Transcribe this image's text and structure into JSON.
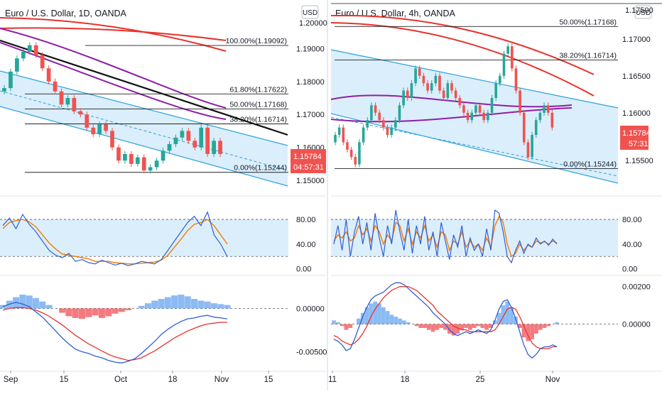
{
  "colors": {
    "channel_fill": "#dbeefb",
    "channel_line": "#2aa2dc",
    "ma_red": "#e8322b",
    "ma_purple": "#8e1fa5",
    "trend_black": "#111111",
    "candle_up": "#26a69a",
    "candle_down": "#ef5350",
    "price_tag": "#ef5350",
    "stoch_k": "#2f5fd6",
    "stoch_d": "#f57c00",
    "macd_line": "#2f5fd6",
    "signal_line": "#e8322b",
    "hist_pos": "#5b9ef0",
    "hist_neg": "#f0424a",
    "grid": "#555555"
  },
  "chart_data": [
    {
      "type": "line",
      "title": "Euro / U.S. Dollar, 1D, OANDA",
      "currency_button": "USD",
      "ylim": [
        1.147,
        1.203
      ],
      "y_ticks": [
        "1.19000",
        "1.18000",
        "1.17000",
        "1.16000",
        "1.15000"
      ],
      "y_tick_values": [
        1.19,
        1.18,
        1.17,
        1.16,
        1.15
      ],
      "top_clipped_label": "1.20000",
      "x_ticks": [
        "Sep",
        "15",
        "Oct",
        "18",
        "Nov",
        "15"
      ],
      "fib_levels": [
        {
          "label": "100.00%(1.19092)",
          "value": 1.19092
        },
        {
          "label": "61.80%(1.17622)",
          "value": 1.17622
        },
        {
          "label": "50.00%(1.17168)",
          "value": 1.17168
        },
        {
          "label": "38.20%(1.16714)",
          "value": 1.16714
        },
        {
          "label": "0.00%(1.15244)",
          "value": 1.15244
        }
      ],
      "last_price": "1.15784",
      "countdown": "04:57:31",
      "series": [
        {
          "values": [
            1.178,
            1.183,
            1.187,
            1.189,
            1.191,
            1.188,
            1.184,
            1.18,
            1.177,
            1.173,
            1.175,
            1.171,
            1.17,
            1.166,
            1.164,
            1.167,
            1.165,
            1.16,
            1.156,
            1.158,
            1.155,
            1.157,
            1.153,
            1.154,
            1.156,
            1.159,
            1.161,
            1.163,
            1.165,
            1.162,
            1.16,
            1.166,
            1.158,
            1.162,
            1.158
          ]
        }
      ],
      "stochastic": {
        "ylim": [
          -5,
          110
        ],
        "ticks": [
          "80.00",
          "40.00",
          "0.00"
        ],
        "tick_values": [
          80,
          40,
          0
        ],
        "band": [
          20,
          80
        ],
        "k": [
          70,
          82,
          65,
          88,
          72,
          60,
          45,
          30,
          22,
          18,
          25,
          12,
          15,
          10,
          8,
          14,
          10,
          6,
          9,
          5,
          8,
          12,
          10,
          8,
          15,
          30,
          45,
          60,
          75,
          85,
          70,
          92,
          55,
          40,
          20
        ],
        "d": [
          65,
          75,
          78,
          80,
          76,
          68,
          55,
          42,
          32,
          24,
          22,
          20,
          18,
          16,
          12,
          12,
          12,
          10,
          9,
          8,
          8,
          9,
          10,
          11,
          14,
          22,
          35,
          48,
          62,
          72,
          75,
          80,
          70,
          55,
          40
        ]
      },
      "macd": {
        "ylim": [
          -0.0066,
          0.0034
        ],
        "ticks": [
          "0.00000",
          "-0.00500"
        ],
        "tick_values": [
          0.0,
          -0.005
        ],
        "hist": [
          0.0004,
          0.0009,
          0.0013,
          0.0016,
          0.0015,
          0.0012,
          0.0008,
          0.0004,
          0.0,
          -0.0005,
          -0.0009,
          -0.0011,
          -0.0012,
          -0.001,
          -0.0008,
          -0.0011,
          -0.0009,
          -0.0006,
          -0.0004,
          -0.0002,
          0.0,
          0.0003,
          0.0006,
          0.0009,
          0.0011,
          0.0013,
          0.0015,
          0.0016,
          0.0014,
          0.0011,
          0.0009,
          0.0008,
          0.0006,
          0.0005,
          0.0004
        ],
        "macd": [
          0.0002,
          0.0005,
          0.0007,
          0.0005,
          0.0002,
          -0.0004,
          -0.001,
          -0.0018,
          -0.0026,
          -0.0034,
          -0.0041,
          -0.0047,
          -0.005,
          -0.0052,
          -0.0055,
          -0.0057,
          -0.006,
          -0.0062,
          -0.0063,
          -0.0061,
          -0.0058,
          -0.0052,
          -0.0045,
          -0.0038,
          -0.003,
          -0.0024,
          -0.0019,
          -0.0015,
          -0.0012,
          -0.0011,
          -0.0009,
          -0.0008,
          -0.001,
          -0.0011,
          -0.0012
        ],
        "signal": [
          -0.0002,
          0.0,
          0.0001,
          0.0001,
          0.0,
          -0.0002,
          -0.0005,
          -0.0009,
          -0.0014,
          -0.0019,
          -0.0025,
          -0.0031,
          -0.0036,
          -0.0041,
          -0.0045,
          -0.0049,
          -0.0053,
          -0.0056,
          -0.0058,
          -0.006,
          -0.0059,
          -0.0057,
          -0.0053,
          -0.0049,
          -0.0044,
          -0.0039,
          -0.0034,
          -0.003,
          -0.0026,
          -0.0023,
          -0.002,
          -0.0018,
          -0.0017,
          -0.0016,
          -0.0016
        ]
      }
    },
    {
      "type": "line",
      "title": "Euro / U.S. Dollar, 4h, OANDA",
      "currency_button": "USD",
      "ylim": [
        1.1495,
        1.1745
      ],
      "y_ticks": [
        "1.17000",
        "1.16500",
        "1.16000"
      ],
      "y_tick_values": [
        1.17,
        1.165,
        1.16
      ],
      "top_clipped_label": "1.17500",
      "bottom_clipped_label": "1.15500",
      "x_ticks": [
        "11",
        "18",
        "25",
        "Nov"
      ],
      "fib_levels": [
        {
          "label": "50.00%(1.17168)",
          "value": 1.17168
        },
        {
          "label": "38.20%(1.16714)",
          "value": 1.16714
        },
        {
          "label": "0.00%(1.15244)",
          "value": 1.15244
        }
      ],
      "last_price": "1.15784",
      "countdown": "57:31",
      "series": [
        {
          "values": [
            1.157,
            1.158,
            1.156,
            1.155,
            1.154,
            1.153,
            1.156,
            1.158,
            1.159,
            1.161,
            1.16,
            1.159,
            1.158,
            1.157,
            1.158,
            1.159,
            1.161,
            1.163,
            1.162,
            1.164,
            1.166,
            1.165,
            1.164,
            1.163,
            1.164,
            1.165,
            1.163,
            1.162,
            1.164,
            1.163,
            1.162,
            1.161,
            1.16,
            1.159,
            1.16,
            1.161,
            1.16,
            1.159,
            1.16,
            1.162,
            1.164,
            1.165,
            1.168,
            1.169,
            1.166,
            1.163,
            1.16,
            1.156,
            1.154,
            1.157,
            1.159,
            1.16,
            1.161,
            1.16,
            1.158
          ]
        }
      ],
      "stochastic": {
        "ylim": [
          -5,
          110
        ],
        "ticks": [
          "80.00",
          "40.00",
          "0.00"
        ],
        "tick_values": [
          80,
          40,
          0
        ],
        "band": [
          20,
          80
        ],
        "k": [
          40,
          70,
          30,
          80,
          20,
          60,
          85,
          40,
          75,
          30,
          90,
          50,
          20,
          70,
          40,
          95,
          60,
          30,
          80,
          25,
          70,
          40,
          85,
          30,
          60,
          20,
          75,
          45,
          15,
          55,
          35,
          70,
          20,
          50,
          30,
          40,
          20,
          65,
          30,
          95,
          90,
          60,
          20,
          10,
          30,
          45,
          25,
          40,
          35,
          50,
          40,
          45,
          38,
          48,
          40
        ],
        "d": [
          45,
          55,
          50,
          60,
          45,
          50,
          70,
          55,
          65,
          45,
          70,
          60,
          40,
          55,
          45,
          75,
          70,
          45,
          65,
          40,
          60,
          50,
          70,
          45,
          55,
          35,
          60,
          55,
          30,
          45,
          40,
          60,
          35,
          45,
          35,
          40,
          30,
          50,
          35,
          70,
          85,
          75,
          40,
          20,
          25,
          40,
          30,
          38,
          35,
          45,
          42,
          44,
          40,
          45,
          42
        ]
      },
      "macd": {
        "ylim": [
          -0.0022,
          0.0024
        ],
        "ticks": [
          "0.00200",
          "0.00000"
        ],
        "tick_values": [
          0.002,
          0.0
        ],
        "hist": [
          0.0002,
          0.0001,
          -0.0001,
          -0.0003,
          -0.0002,
          0.0,
          0.0003,
          0.0006,
          0.0009,
          0.0011,
          0.0012,
          0.0011,
          0.0009,
          0.0007,
          0.0005,
          0.0004,
          0.0003,
          0.0002,
          0.0001,
          0.0,
          -0.0001,
          -0.0002,
          -0.0002,
          -0.0003,
          -0.0004,
          -0.0003,
          -0.0002,
          -0.0003,
          -0.0005,
          -0.0006,
          -0.0005,
          -0.0003,
          -0.0002,
          -0.0003,
          -0.0002,
          -0.0001,
          -0.0002,
          -0.0003,
          -0.0002,
          0.0002,
          0.0006,
          0.001,
          0.0012,
          0.0009,
          0.0004,
          -0.0002,
          -0.0007,
          -0.0009,
          -0.0008,
          -0.0005,
          -0.0003,
          -0.0002,
          -0.0001,
          0.0,
          0.0001
        ],
        "macd": [
          -0.0008,
          -0.0009,
          -0.0011,
          -0.0014,
          -0.0013,
          -0.0008,
          -0.0002,
          0.0004,
          0.0009,
          0.0013,
          0.0015,
          0.0016,
          0.0017,
          0.0019,
          0.0021,
          0.0022,
          0.0022,
          0.0021,
          0.0019,
          0.0017,
          0.0015,
          0.0013,
          0.0011,
          0.0009,
          0.0006,
          0.0004,
          0.0002,
          0.0,
          -0.0003,
          -0.0005,
          -0.0006,
          -0.0005,
          -0.0004,
          -0.0005,
          -0.0004,
          -0.0003,
          -0.0004,
          -0.0005,
          -0.0003,
          0.0002,
          0.0008,
          0.0012,
          0.0013,
          0.0009,
          0.0003,
          -0.0004,
          -0.0011,
          -0.0016,
          -0.0018,
          -0.0016,
          -0.0013,
          -0.0012,
          -0.0012,
          -0.0011,
          -0.0012
        ],
        "signal": [
          -0.0006,
          -0.0007,
          -0.0009,
          -0.001,
          -0.0011,
          -0.001,
          -0.0008,
          -0.0005,
          -0.0001,
          0.0004,
          0.0008,
          0.0011,
          0.0014,
          0.0016,
          0.0018,
          0.0019,
          0.002,
          0.002,
          0.002,
          0.0019,
          0.0018,
          0.0016,
          0.0014,
          0.0012,
          0.001,
          0.0007,
          0.0005,
          0.0003,
          0.0001,
          -0.0001,
          -0.0002,
          -0.0003,
          -0.0003,
          -0.0004,
          -0.0004,
          -0.0004,
          -0.0004,
          -0.0004,
          -0.0004,
          -0.0003,
          0.0,
          0.0004,
          0.0008,
          0.0009,
          0.0008,
          0.0004,
          -0.0001,
          -0.0006,
          -0.001,
          -0.0012,
          -0.0013,
          -0.0013,
          -0.0013,
          -0.0012,
          -0.0012
        ]
      }
    }
  ]
}
